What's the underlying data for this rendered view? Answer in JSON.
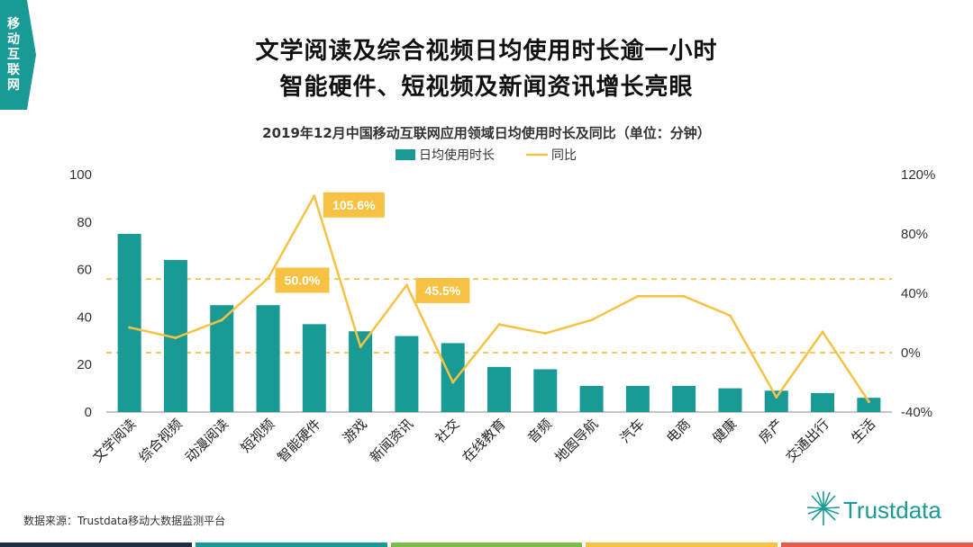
{
  "corner_tag": [
    "移",
    "动",
    "互",
    "联",
    "网"
  ],
  "headline": {
    "line1": "文学阅读及综合视频日均使用时长逾一小时",
    "line2": "智能硬件、短视频及新闻资讯增长亮眼"
  },
  "source": "数据来源：Trustdata移动大数据监测平台",
  "logo_text": "Trustdata",
  "colors": {
    "bar": "#1a9a95",
    "line": "#f7c244",
    "callout": "#f7c244",
    "guide": "#f2b733",
    "corner": "#1a9a95",
    "footer_bar": [
      "#1d2b45",
      "#1a9a95",
      "#7dbb4a",
      "#f7c244",
      "#e8584d"
    ]
  },
  "chart_data": {
    "type": "bar",
    "title": "2019年12月中国移动互联网应用领域日均使用时长及同比（单位：分钟）",
    "categories": [
      "文学阅读",
      "综合视频",
      "动漫阅读",
      "短视频",
      "智能硬件",
      "游戏",
      "新闻资讯",
      "社交",
      "在线教育",
      "音频",
      "地图导航",
      "汽车",
      "电商",
      "健康",
      "房产",
      "交通出行",
      "生活"
    ],
    "series": [
      {
        "name": "日均使用时长",
        "type": "bar",
        "axis": "left",
        "values": [
          75,
          64,
          45,
          45,
          37,
          34,
          32,
          29,
          19,
          18,
          11,
          11,
          11,
          10,
          9,
          8,
          6
        ]
      },
      {
        "name": "同比",
        "type": "line",
        "axis": "right",
        "values": [
          17,
          10,
          22,
          50.0,
          105.6,
          4,
          45.5,
          -20,
          19,
          13,
          22,
          38,
          38,
          25,
          -30,
          14,
          -33
        ]
      }
    ],
    "left_axis": {
      "min": 0,
      "max": 100,
      "ticks": [
        "0",
        "20",
        "40",
        "60",
        "80",
        "100"
      ]
    },
    "right_axis": {
      "min": -40,
      "max": 120,
      "ticks": [
        "-40%",
        "0%",
        "40%",
        "80%",
        "120%"
      ]
    },
    "reference_lines_left": [
      25,
      56
    ],
    "callouts": [
      {
        "index": 4,
        "label": "105.6%"
      },
      {
        "index": 3,
        "label": "50.0%"
      },
      {
        "index": 6,
        "label": "45.5%"
      }
    ],
    "legend": {
      "position": "top",
      "bar_label": "日均使用时长",
      "line_label": "同比"
    }
  }
}
